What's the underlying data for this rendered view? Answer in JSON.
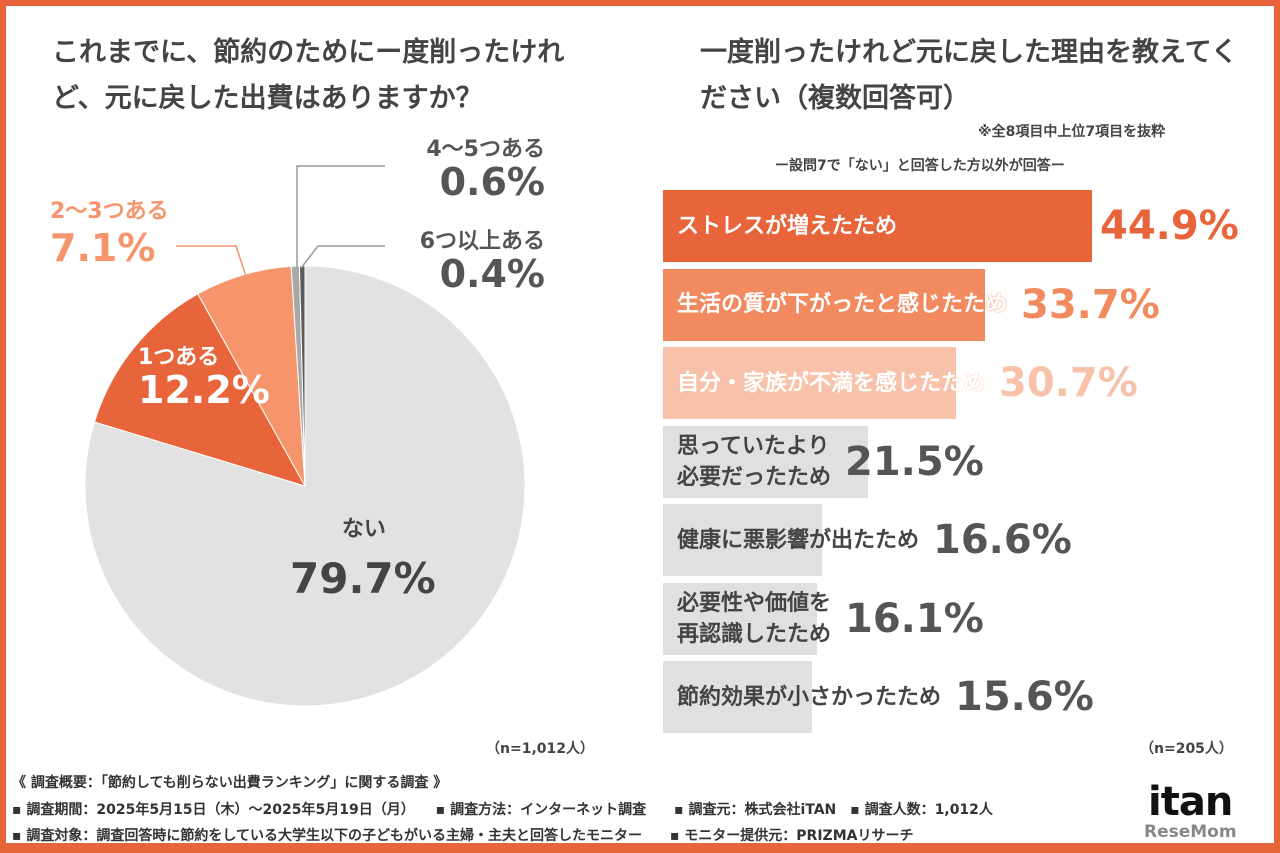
{
  "chart_data": [
    {
      "type": "pie",
      "title": "これまでに、節約のためにー度削ったけれど、元に戻した出費はありますか？",
      "slices": [
        {
          "label": "ない",
          "value": 79.7,
          "color": "#E2E2E2"
        },
        {
          "label": "1つある",
          "value": 12.2,
          "color": "#E8643A"
        },
        {
          "label": "2〜3つある",
          "value": 7.1,
          "color": "#F6946B"
        },
        {
          "label": "4〜5つある",
          "value": 0.6,
          "color": "#A8A8A8"
        },
        {
          "label": "6つ以上ある",
          "value": 0.4,
          "color": "#5A5A5A"
        }
      ],
      "slice_labels": [
        "79.7%",
        "12.2%",
        "7.1%",
        "0.6%",
        "0.4%"
      ],
      "n": "（n=1,012人）"
    },
    {
      "type": "bar",
      "orientation": "horizontal",
      "title": "一度削ったけれど元に戻した理由を教えてください（複数回答可）",
      "note": "※全8項目中上位7項目を抜粋",
      "subtitle": "ー設問7で「ない」と回答した方以外が回答ー",
      "categories": [
        "ストレスが増えたため",
        "生活の質が下がったと感じたため",
        "自分・家族が不満を感じたため",
        "思っていたより必要だったため",
        "健康に悪影響が出たため",
        "必要性や価値を再認識したため",
        "節約効果が小さかったため"
      ],
      "label_lines": [
        [
          "ストレスが増えたため"
        ],
        [
          "生活の質が下がったと感じたため"
        ],
        [
          "自分・家族が不満を感じたため"
        ],
        [
          "思っていたより",
          "必要だったため"
        ],
        [
          "健康に悪影響が出たため"
        ],
        [
          "必要性や価値を",
          "再認識したため"
        ],
        [
          "節約効果が小さかったため"
        ]
      ],
      "values": [
        44.9,
        33.7,
        30.7,
        21.5,
        16.6,
        16.1,
        15.6
      ],
      "value_labels": [
        "44.9%",
        "33.7%",
        "30.7%",
        "21.5%",
        "16.6%",
        "16.1%",
        "15.6%"
      ],
      "bar_colors": [
        "#E8643A",
        "#F28A60",
        "#F8C2AA",
        "#E0E0E0",
        "#E0E0E0",
        "#E0E0E0",
        "#E0E0E0"
      ],
      "value_colors": [
        "#E8643A",
        "#F28A60",
        "#F8C2AA",
        "#555555",
        "#555555",
        "#555555",
        "#555555"
      ],
      "text_colors": [
        "#ffffff",
        "#ffffff",
        "#ffffff",
        "#444444",
        "#444444",
        "#444444",
        "#444444"
      ],
      "n": "（n=205人）"
    }
  ],
  "footer": {
    "title": "《 調査概要：「節約しても削らない出費ランキング」に関する調査 》",
    "line1": "▪ 調査期間：2025年5月15日（木）〜2025年5月19日（月）　　▪ 調査方法：インターネット調査　　▪ 調査元：株式会社iTAN　▪ 調査人数：1,012人",
    "line2": "▪ 調査対象：調査回答時に節約をしている大学生以下の子どもがいる主婦・主夫と回答したモニター　　▪ モニター提供元：PRIZMAリサーチ"
  },
  "logo": {
    "main": "itan",
    "sub": "ReseMom"
  }
}
